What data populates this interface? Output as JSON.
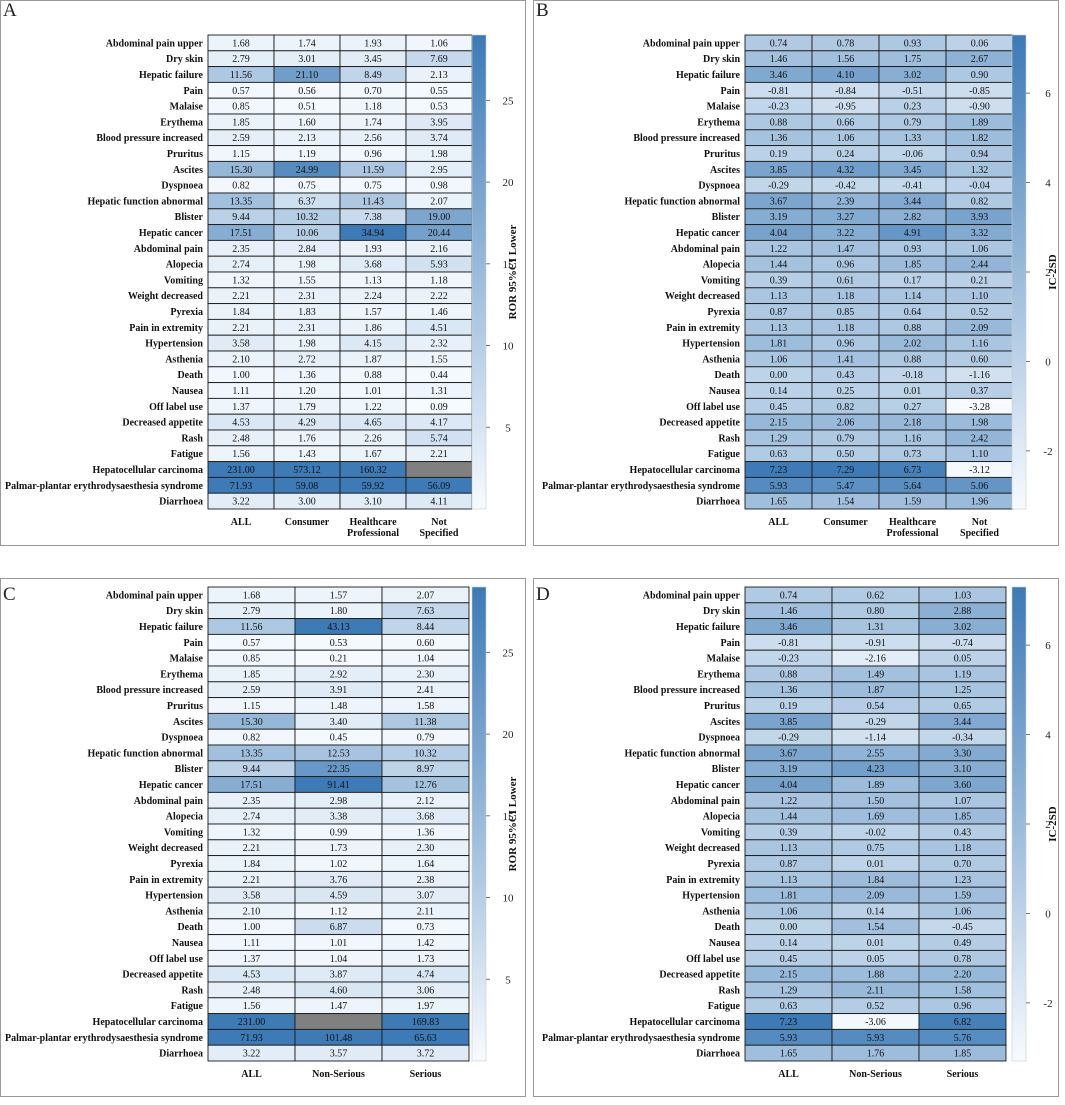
{
  "chart_data": [
    {
      "panel": "A",
      "type": "heatmap",
      "legend_label": "ROR 95%CI Lower",
      "colorbar_ticks": [
        5,
        10,
        15,
        20,
        25
      ],
      "color_range": [
        0,
        29
      ],
      "rows": [
        "Abdominal pain upper",
        "Dry skin",
        "Hepatic failure",
        "Pain",
        "Malaise",
        "Erythema",
        "Blood pressure increased",
        "Pruritus",
        "Ascites",
        "Dyspnoea",
        "Hepatic function abnormal",
        "Blister",
        "Hepatic cancer",
        "Abdominal pain",
        "Alopecia",
        "Vomiting",
        "Weight decreased",
        "Pyrexia",
        "Pain in extremity",
        "Hypertension",
        "Asthenia",
        "Death",
        "Nausea",
        "Off label use",
        "Decreased appetite",
        "Rash",
        "Fatigue",
        "Hepatocellular carcinoma",
        "Palmar-plantar erythrodysaesthesia syndrome",
        "Diarrhoea"
      ],
      "columns": [
        [
          "ALL"
        ],
        [
          "Consumer"
        ],
        [
          "Healthcare",
          "Professional"
        ],
        [
          "Not",
          "Specified"
        ]
      ],
      "values": [
        [
          "1.68",
          "1.74",
          "1.93",
          "1.06"
        ],
        [
          "2.79",
          "3.01",
          "3.45",
          "7.69"
        ],
        [
          "11.56",
          "21.10",
          "8.49",
          "2.13"
        ],
        [
          "0.57",
          "0.56",
          "0.70",
          "0.55"
        ],
        [
          "0.85",
          "0.51",
          "1.18",
          "0.53"
        ],
        [
          "1.85",
          "1.60",
          "1.74",
          "3.95"
        ],
        [
          "2.59",
          "2.13",
          "2.56",
          "3.74"
        ],
        [
          "1.15",
          "1.19",
          "0.96",
          "1.98"
        ],
        [
          "15.30",
          "24.99",
          "11.59",
          "2.95"
        ],
        [
          "0.82",
          "0.75",
          "0.75",
          "0.98"
        ],
        [
          "13.35",
          "6.37",
          "11.43",
          "2.07"
        ],
        [
          "9.44",
          "10.32",
          "7.38",
          "19.00"
        ],
        [
          "17.51",
          "10.06",
          "34.94",
          "20.44"
        ],
        [
          "2.35",
          "2.84",
          "1.93",
          "2.16"
        ],
        [
          "2.74",
          "1.98",
          "3.68",
          "5.93"
        ],
        [
          "1.32",
          "1.55",
          "1.13",
          "1.18"
        ],
        [
          "2.21",
          "2.31",
          "2.24",
          "2.22"
        ],
        [
          "1.84",
          "1.83",
          "1.57",
          "1.46"
        ],
        [
          "2.21",
          "2.31",
          "1.86",
          "4.51"
        ],
        [
          "3.58",
          "1.98",
          "4.15",
          "2.32"
        ],
        [
          "2.10",
          "2.72",
          "1.87",
          "1.55"
        ],
        [
          "1.00",
          "1.36",
          "0.88",
          "0.44"
        ],
        [
          "1.11",
          "1.20",
          "1.01",
          "1.31"
        ],
        [
          "1.37",
          "1.79",
          "1.22",
          "0.09"
        ],
        [
          "4.53",
          "4.29",
          "4.65",
          "4.17"
        ],
        [
          "2.48",
          "1.76",
          "2.26",
          "5.74"
        ],
        [
          "1.56",
          "1.43",
          "1.67",
          "2.21"
        ],
        [
          "231.00",
          "573.12",
          "160.32",
          ""
        ],
        [
          "71.93",
          "59.08",
          "59.92",
          "56.09"
        ],
        [
          "3.22",
          "3.00",
          "3.10",
          "4.11"
        ]
      ]
    },
    {
      "panel": "B",
      "type": "heatmap",
      "legend_label": "IC-2SD",
      "colorbar_ticks": [
        -2,
        0,
        2,
        4,
        6
      ],
      "color_range": [
        -3.3,
        7.3
      ],
      "rows": [
        "Abdominal pain upper",
        "Dry skin",
        "Hepatic failure",
        "Pain",
        "Malaise",
        "Erythema",
        "Blood pressure increased",
        "Pruritus",
        "Ascites",
        "Dyspnoea",
        "Hepatic function abnormal",
        "Blister",
        "Hepatic cancer",
        "Abdominal pain",
        "Alopecia",
        "Vomiting",
        "Weight decreased",
        "Pyrexia",
        "Pain in extremity",
        "Hypertension",
        "Asthenia",
        "Death",
        "Nausea",
        "Off label use",
        "Decreased appetite",
        "Rash",
        "Fatigue",
        "Hepatocellular carcinoma",
        "Palmar-plantar erythrodysaesthesia syndrome",
        "Diarrhoea"
      ],
      "columns": [
        [
          "ALL"
        ],
        [
          "Consumer"
        ],
        [
          "Healthcare",
          "Professional"
        ],
        [
          "Not",
          "Specified"
        ]
      ],
      "values": [
        [
          "0.74",
          "0.78",
          "0.93",
          "0.06"
        ],
        [
          "1.46",
          "1.56",
          "1.75",
          "2.67"
        ],
        [
          "3.46",
          "4.10",
          "3.02",
          "0.90"
        ],
        [
          "-0.81",
          "-0.84",
          "-0.51",
          "-0.85"
        ],
        [
          "-0.23",
          "-0.95",
          "0.23",
          "-0.90"
        ],
        [
          "0.88",
          "0.66",
          "0.79",
          "1.89"
        ],
        [
          "1.36",
          "1.06",
          "1.33",
          "1.82"
        ],
        [
          "0.19",
          "0.24",
          "-0.06",
          "0.94"
        ],
        [
          "3.85",
          "4.32",
          "3.45",
          "1.32"
        ],
        [
          "-0.29",
          "-0.42",
          "-0.41",
          "-0.04"
        ],
        [
          "3.67",
          "2.39",
          "3.44",
          "0.82"
        ],
        [
          "3.19",
          "3.27",
          "2.82",
          "3.93"
        ],
        [
          "4.04",
          "3.22",
          "4.91",
          "3.32"
        ],
        [
          "1.22",
          "1.47",
          "0.93",
          "1.06"
        ],
        [
          "1.44",
          "0.96",
          "1.85",
          "2.44"
        ],
        [
          "0.39",
          "0.61",
          "0.17",
          "0.21"
        ],
        [
          "1.13",
          "1.18",
          "1.14",
          "1.10"
        ],
        [
          "0.87",
          "0.85",
          "0.64",
          "0.52"
        ],
        [
          "1.13",
          "1.18",
          "0.88",
          "2.09"
        ],
        [
          "1.81",
          "0.96",
          "2.02",
          "1.16"
        ],
        [
          "1.06",
          "1.41",
          "0.88",
          "0.60"
        ],
        [
          "0.00",
          "0.43",
          "-0.18",
          "-1.16"
        ],
        [
          "0.14",
          "0.25",
          "0.01",
          "0.37"
        ],
        [
          "0.45",
          "0.82",
          "0.27",
          "-3.28"
        ],
        [
          "2.15",
          "2.06",
          "2.18",
          "1.98"
        ],
        [
          "1.29",
          "0.79",
          "1.16",
          "2.42"
        ],
        [
          "0.63",
          "0.50",
          "0.73",
          "1.10"
        ],
        [
          "7.23",
          "7.29",
          "6.73",
          "-3.12"
        ],
        [
          "5.93",
          "5.47",
          "5.64",
          "5.06"
        ],
        [
          "1.65",
          "1.54",
          "1.59",
          "1.96"
        ]
      ]
    },
    {
      "panel": "C",
      "type": "heatmap",
      "legend_label": "ROR 95%CI Lower",
      "colorbar_ticks": [
        5,
        10,
        15,
        20,
        25
      ],
      "color_range": [
        0,
        29
      ],
      "rows": [
        "Abdominal pain upper",
        "Dry skin",
        "Hepatic failure",
        "Pain",
        "Malaise",
        "Erythema",
        "Blood pressure increased",
        "Pruritus",
        "Ascites",
        "Dyspnoea",
        "Hepatic function abnormal",
        "Blister",
        "Hepatic cancer",
        "Abdominal pain",
        "Alopecia",
        "Vomiting",
        "Weight decreased",
        "Pyrexia",
        "Pain in extremity",
        "Hypertension",
        "Asthenia",
        "Death",
        "Nausea",
        "Off label use",
        "Decreased appetite",
        "Rash",
        "Fatigue",
        "Hepatocellular carcinoma",
        "Palmar-plantar erythrodysaesthesia syndrome",
        "Diarrhoea"
      ],
      "columns": [
        [
          "ALL"
        ],
        [
          "Non-Serious"
        ],
        [
          "Serious"
        ]
      ],
      "values": [
        [
          "1.68",
          "1.57",
          "2.07"
        ],
        [
          "2.79",
          "1.80",
          "7.63"
        ],
        [
          "11.56",
          "43.13",
          "8.44"
        ],
        [
          "0.57",
          "0.53",
          "0.60"
        ],
        [
          "0.85",
          "0.21",
          "1.04"
        ],
        [
          "1.85",
          "2.92",
          "2.30"
        ],
        [
          "2.59",
          "3.91",
          "2.41"
        ],
        [
          "1.15",
          "1.48",
          "1.58"
        ],
        [
          "15.30",
          "3.40",
          "11.38"
        ],
        [
          "0.82",
          "0.45",
          "0.79"
        ],
        [
          "13.35",
          "12.53",
          "10.32"
        ],
        [
          "9.44",
          "22.35",
          "8.97"
        ],
        [
          "17.51",
          "91.41",
          "12.76"
        ],
        [
          "2.35",
          "2.98",
          "2.12"
        ],
        [
          "2.74",
          "3.38",
          "3.68"
        ],
        [
          "1.32",
          "0.99",
          "1.36"
        ],
        [
          "2.21",
          "1.73",
          "2.30"
        ],
        [
          "1.84",
          "1.02",
          "1.64"
        ],
        [
          "2.21",
          "3.76",
          "2.38"
        ],
        [
          "3.58",
          "4.59",
          "3.07"
        ],
        [
          "2.10",
          "1.12",
          "2.11"
        ],
        [
          "1.00",
          "6.87",
          "0.73"
        ],
        [
          "1.11",
          "1.01",
          "1.42"
        ],
        [
          "1.37",
          "1.04",
          "1.73"
        ],
        [
          "4.53",
          "3.87",
          "4.74"
        ],
        [
          "2.48",
          "4.60",
          "3.06"
        ],
        [
          "1.56",
          "1.47",
          "1.97"
        ],
        [
          "231.00",
          "",
          "169.83"
        ],
        [
          "71.93",
          "101.48",
          "65.63"
        ],
        [
          "3.22",
          "3.57",
          "3.72"
        ]
      ]
    },
    {
      "panel": "D",
      "type": "heatmap",
      "legend_label": "IC-2SD",
      "colorbar_ticks": [
        -2,
        0,
        2,
        4,
        6
      ],
      "color_range": [
        -3.3,
        7.3
      ],
      "rows": [
        "Abdominal pain upper",
        "Dry skin",
        "Hepatic failure",
        "Pain",
        "Malaise",
        "Erythema",
        "Blood pressure increased",
        "Pruritus",
        "Ascites",
        "Dyspnoea",
        "Hepatic function abnormal",
        "Blister",
        "Hepatic cancer",
        "Abdominal pain",
        "Alopecia",
        "Vomiting",
        "Weight decreased",
        "Pyrexia",
        "Pain in extremity",
        "Hypertension",
        "Asthenia",
        "Death",
        "Nausea",
        "Off label use",
        "Decreased appetite",
        "Rash",
        "Fatigue",
        "Hepatocellular carcinoma",
        "Palmar-plantar erythrodysaesthesia syndrome",
        "Diarrhoea"
      ],
      "columns": [
        [
          "ALL"
        ],
        [
          "Non-Serious"
        ],
        [
          "Serious"
        ]
      ],
      "values": [
        [
          "0.74",
          "0.62",
          "1.03"
        ],
        [
          "1.46",
          "0.80",
          "2.88"
        ],
        [
          "3.46",
          "1.31",
          "3.02"
        ],
        [
          "-0.81",
          "-0.91",
          "-0.74"
        ],
        [
          "-0.23",
          "-2.16",
          "0.05"
        ],
        [
          "0.88",
          "1.49",
          "1.19"
        ],
        [
          "1.36",
          "1.87",
          "1.25"
        ],
        [
          "0.19",
          "0.54",
          "0.65"
        ],
        [
          "3.85",
          "-0.29",
          "3.44"
        ],
        [
          "-0.29",
          "-1.14",
          "-0.34"
        ],
        [
          "3.67",
          "2.55",
          "3.30"
        ],
        [
          "3.19",
          "4.23",
          "3.10"
        ],
        [
          "4.04",
          "1.89",
          "3.60"
        ],
        [
          "1.22",
          "1.50",
          "1.07"
        ],
        [
          "1.44",
          "1.69",
          "1.85"
        ],
        [
          "0.39",
          "-0.02",
          "0.43"
        ],
        [
          "1.13",
          "0.75",
          "1.18"
        ],
        [
          "0.87",
          "0.01",
          "0.70"
        ],
        [
          "1.13",
          "1.84",
          "1.23"
        ],
        [
          "1.81",
          "2.09",
          "1.59"
        ],
        [
          "1.06",
          "0.14",
          "1.06"
        ],
        [
          "0.00",
          "1.54",
          "-0.45"
        ],
        [
          "0.14",
          "0.01",
          "0.49"
        ],
        [
          "0.45",
          "0.05",
          "0.78"
        ],
        [
          "2.15",
          "1.88",
          "2.20"
        ],
        [
          "1.29",
          "2.11",
          "1.58"
        ],
        [
          "0.63",
          "0.52",
          "0.96"
        ],
        [
          "7.23",
          "-3.06",
          "6.82"
        ],
        [
          "5.93",
          "5.93",
          "5.76"
        ],
        [
          "1.65",
          "1.76",
          "1.85"
        ]
      ]
    }
  ],
  "colors": {
    "low": "#f7fbff",
    "high": "#3d7ab6",
    "missing": "#808080",
    "grid": "#1a1a1a"
  }
}
